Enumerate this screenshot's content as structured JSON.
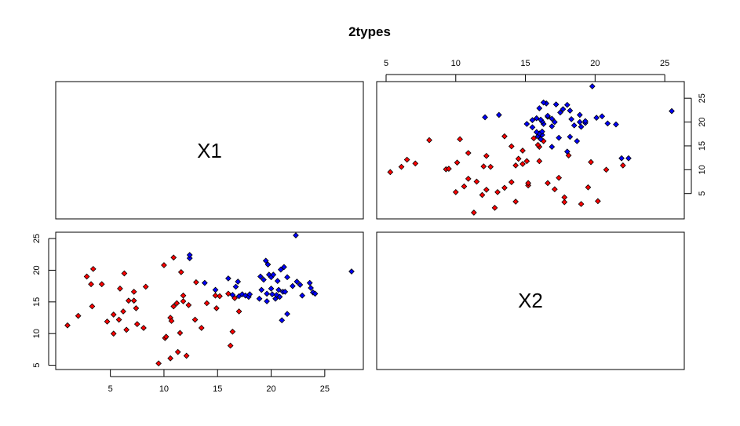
{
  "chart_data": {
    "type": "scatter",
    "title": "2types",
    "variables": [
      "X1",
      "X2"
    ],
    "ranges": {
      "X1": [
        1,
        27.5
      ],
      "X2": [
        5,
        25.5
      ]
    },
    "x1_ticks": [
      5,
      10,
      15,
      20,
      25
    ],
    "x2_ticks": [
      5,
      10,
      15,
      20,
      25
    ],
    "series": [
      {
        "name": "",
        "color": "#ff0000",
        "x1": [
          1.0,
          2.0,
          2.8,
          3.2,
          3.3,
          3.4,
          4.2,
          4.7,
          5.3,
          5.3,
          5.8,
          5.9,
          6.2,
          6.3,
          6.5,
          6.7,
          7.2,
          7.2,
          7.4,
          7.5,
          8.1,
          8.3,
          9.5,
          10.0,
          10.1,
          10.2,
          10.6,
          10.6,
          10.7,
          10.9,
          10.9,
          11.2,
          11.3,
          11.5,
          11.6,
          11.8,
          11.8,
          12.1,
          12.3,
          12.9,
          13.0,
          13.5,
          14.0,
          14.8,
          14.9,
          15.2,
          16.0,
          16.2,
          16.4,
          16.6,
          17.0
        ],
        "x2": [
          11.3,
          12.8,
          19.0,
          17.8,
          14.3,
          20.2,
          17.8,
          11.9,
          10.0,
          13.0,
          12.2,
          17.1,
          13.5,
          19.5,
          10.6,
          15.2,
          16.6,
          15.2,
          14.0,
          11.5,
          10.9,
          17.4,
          5.3,
          20.8,
          9.3,
          9.5,
          6.1,
          12.5,
          12.0,
          22.0,
          14.3,
          14.8,
          7.1,
          10.1,
          19.7,
          15.1,
          16.0,
          6.5,
          14.5,
          12.2,
          18.1,
          10.9,
          14.8,
          16.0,
          14.0,
          15.9,
          16.3,
          8.1,
          10.3,
          15.6,
          13.5
        ]
      },
      {
        "name": "",
        "color": "#0000ff",
        "x1": [
          12.4,
          12.4,
          13.8,
          14.8,
          16.0,
          16.4,
          16.7,
          16.9,
          17.0,
          17.3,
          17.6,
          17.9,
          18.0,
          18.9,
          19.0,
          19.1,
          19.3,
          19.5,
          19.6,
          19.6,
          19.7,
          19.8,
          20.0,
          20.0,
          20.1,
          20.2,
          20.4,
          20.5,
          20.6,
          20.7,
          20.8,
          20.9,
          21.0,
          21.1,
          21.2,
          21.3,
          21.5,
          21.5,
          22.0,
          22.3,
          22.4,
          22.7,
          22.9,
          23.6,
          23.7,
          23.9,
          24.1,
          27.5
        ],
        "x2": [
          21.9,
          22.4,
          18.0,
          16.9,
          18.7,
          16.1,
          17.4,
          18.2,
          15.9,
          16.2,
          16.0,
          15.8,
          16.2,
          15.5,
          19.0,
          16.9,
          18.5,
          21.5,
          15.1,
          16.3,
          20.9,
          19.3,
          17.1,
          18.9,
          16.2,
          19.3,
          15.5,
          16.1,
          18.3,
          16.9,
          15.8,
          20.1,
          12.1,
          16.6,
          20.5,
          16.6,
          13.1,
          18.9,
          17.5,
          25.5,
          18.2,
          17.7,
          16.0,
          18.0,
          17.2,
          16.5,
          16.3,
          19.8
        ]
      }
    ]
  }
}
